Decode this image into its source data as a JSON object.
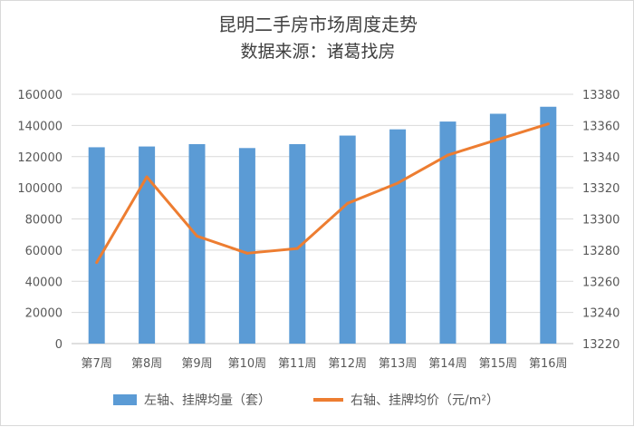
{
  "chart_data": {
    "type": "bar+line",
    "title": "昆明二手房市场周度走势",
    "subtitle": "数据来源：诸葛找房",
    "categories": [
      "第7周",
      "第8周",
      "第9周",
      "第10周",
      "第11周",
      "第12周",
      "第13周",
      "第14周",
      "第15周",
      "第16周"
    ],
    "series": [
      {
        "name": "左轴、挂牌均量（套）",
        "type": "bar",
        "axis": "left",
        "color": "#5b9bd5",
        "values": [
          126000,
          126500,
          128000,
          125500,
          128000,
          133500,
          137500,
          142500,
          147500,
          152000
        ]
      },
      {
        "name": "右轴、挂牌均价（元/m²）",
        "type": "line",
        "axis": "right",
        "color": "#ed7d31",
        "values": [
          13272,
          13327,
          13289,
          13278,
          13281,
          13310,
          13323,
          13341,
          13351,
          13361
        ]
      }
    ],
    "left_axis": {
      "ylim": [
        0,
        160000
      ],
      "ticks": [
        "0",
        "20000",
        "40000",
        "60000",
        "80000",
        "100000",
        "120000",
        "140000",
        "160000"
      ]
    },
    "right_axis": {
      "ylim": [
        13220,
        13380
      ],
      "ticks": [
        "13220",
        "13240",
        "13260",
        "13280",
        "13300",
        "13320",
        "13340",
        "13360",
        "13380"
      ]
    },
    "grid": true,
    "legend_position": "bottom"
  }
}
